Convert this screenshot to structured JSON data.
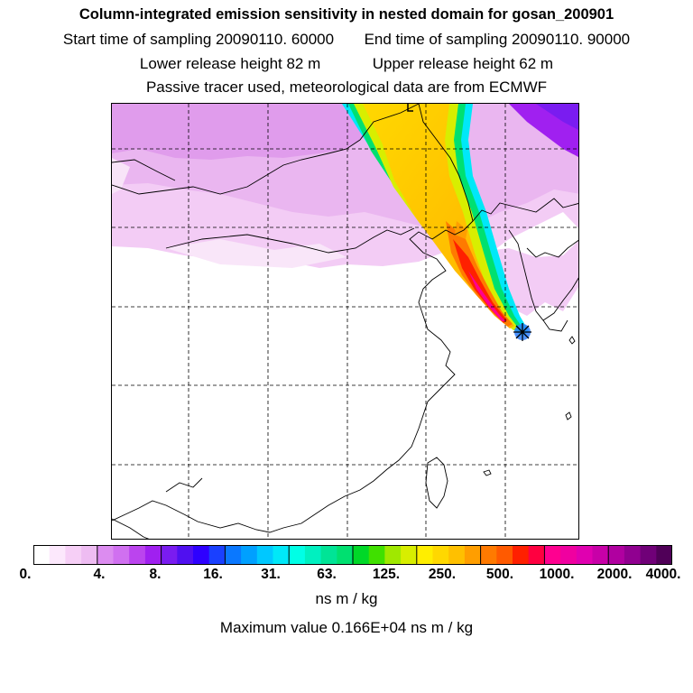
{
  "header": {
    "title": "Column-integrated emission sensitivity in nested domain for gosan_200901",
    "start_label": "Start time of sampling 20090110. 60000",
    "end_label": "End time of sampling 20090110. 90000",
    "lower_label": "Lower release height   82 m",
    "upper_label": "Upper release height   62 m",
    "tracer_label": "Passive tracer used, meteorological data are from ECMWF"
  },
  "chart_data": {
    "type": "heatmap",
    "title": "Column-integrated emission sensitivity in nested domain for gosan_200901",
    "colorbar": {
      "tick_labels": [
        "0.",
        "4.",
        "8.",
        "16.",
        "31.",
        "63.",
        "125.",
        "250.",
        "500.",
        "1000.",
        "2000.",
        "4000."
      ],
      "units": "ns m / kg",
      "colors": [
        "#ffffff",
        "#fce8fc",
        "#f6cff6",
        "#eebcf2",
        "#dc8cf0",
        "#d070f0",
        "#bb44ee",
        "#a020f0",
        "#7a1cf0",
        "#5010f0",
        "#2e00ff",
        "#1a40ff",
        "#0a78ff",
        "#00a0ff",
        "#00c8ff",
        "#00e8f8",
        "#00ffe6",
        "#00f0c0",
        "#00e496",
        "#00e070",
        "#00d828",
        "#40e000",
        "#a0e800",
        "#d8ee00",
        "#ffee00",
        "#ffd800",
        "#ffc000",
        "#ff9e00",
        "#ff7a00",
        "#ff5a00",
        "#ff2000",
        "#ff0040",
        "#ff0090",
        "#f000a0",
        "#e000b0",
        "#c800a8",
        "#b000a0",
        "#900090",
        "#700078",
        "#500058"
      ]
    },
    "maximum_value": "Maximum value  0.166E+04 ns m / kg",
    "receptor": "gosan"
  }
}
